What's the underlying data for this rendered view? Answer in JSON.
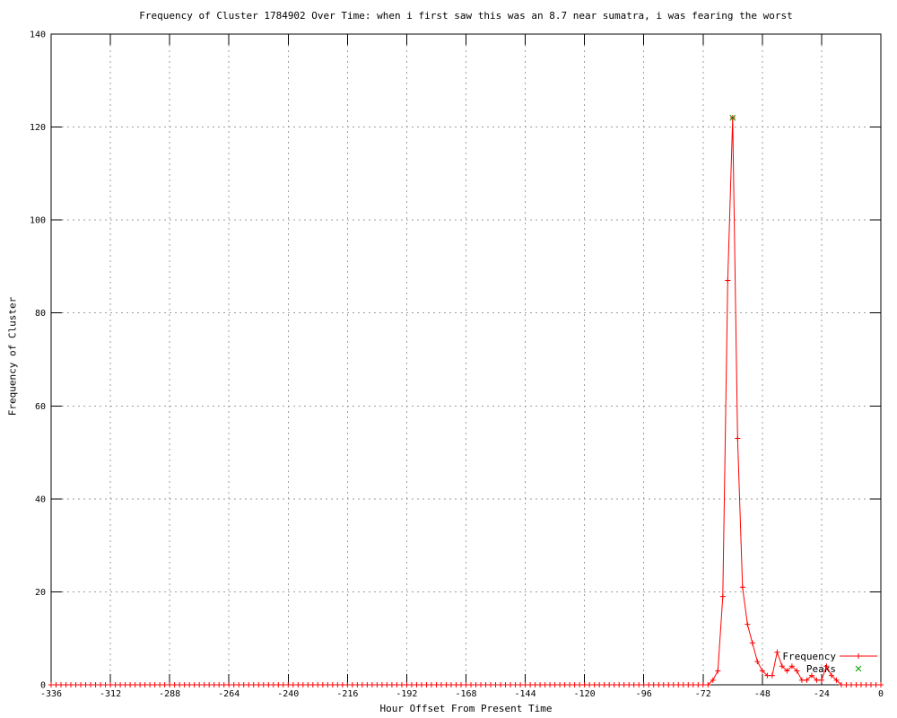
{
  "chart_data": {
    "type": "line",
    "title": "Frequency of Cluster 1784902 Over Time: when i first saw this was an 8.7 near sumatra, i was fearing the worst",
    "xlabel": "Hour Offset From Present Time",
    "ylabel": "Frequency of Cluster",
    "xlim": [
      -336,
      0
    ],
    "ylim": [
      0,
      140
    ],
    "x_tick_step": 24,
    "y_tick_step": 20,
    "x_tick_labels": [
      "-336",
      "-312",
      "-288",
      "-264",
      "-240",
      "-216",
      "-192",
      "-168",
      "-144",
      "-120",
      "-96",
      "-72",
      "-48",
      "-24",
      "0"
    ],
    "y_tick_labels": [
      "0",
      "20",
      "40",
      "60",
      "80",
      "100",
      "120",
      "140"
    ],
    "grid": true,
    "grid_color": "#9e9e9e",
    "border_color": "#000000",
    "legend_position": "inside-bottom-right",
    "series": [
      {
        "name": "Frequency",
        "color": "#ff0000",
        "style": "linespoints",
        "marker": "plus",
        "x_start": -336,
        "x_end": 0,
        "x_step": 2,
        "default_value": 0,
        "nonzero_values": {
          "-68": 1,
          "-66": 3,
          "-64": 19,
          "-62": 87,
          "-60": 122,
          "-58": 53,
          "-56": 21,
          "-54": 13,
          "-52": 9,
          "-50": 5,
          "-48": 3,
          "-46": 2,
          "-44": 2,
          "-42": 7,
          "-40": 4,
          "-38": 3,
          "-36": 4,
          "-34": 3,
          "-32": 1,
          "-30": 1,
          "-28": 2,
          "-26": 1,
          "-24": 1,
          "-22": 4,
          "-20": 2,
          "-18": 1
        }
      },
      {
        "name": "Peaks",
        "color": "#00a000",
        "style": "points",
        "marker": "cross",
        "points": [
          [
            -60,
            122
          ]
        ]
      }
    ]
  }
}
